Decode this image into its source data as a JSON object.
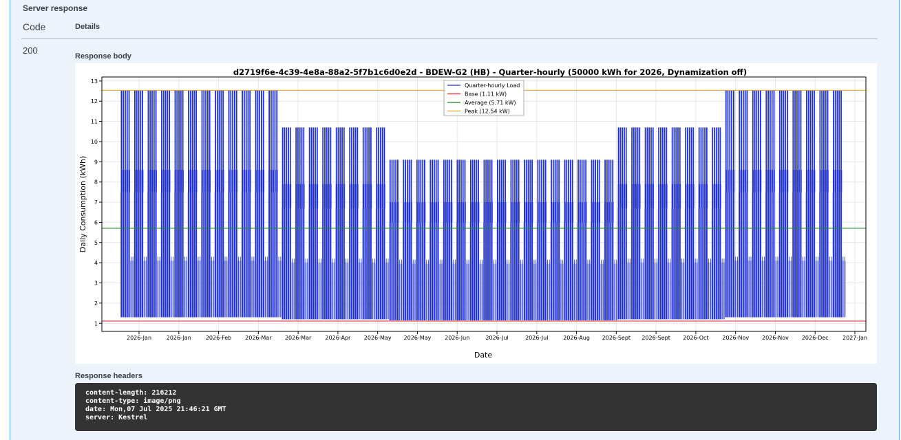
{
  "server_response": {
    "title": "Server response",
    "col_code": "Code",
    "col_details": "Details",
    "status_code": "200",
    "response_body_label": "Response body",
    "response_headers_label": "Response headers"
  },
  "headers": [
    "content-length: 216212",
    "content-type: image/png",
    "date: Mon,07 Jul 2025 21:46:21 GMT",
    "server: Kestrel"
  ],
  "chart_data": {
    "type": "line",
    "title": "d2719f6e-4c39-4e8a-88a2-5f7b1c6d0e2d - BDEW-G2 (HB) - Quarter-hourly (50000 kWh for 2026, Dynamization off)",
    "xlabel": "Date",
    "ylabel": "Daily Consumption (kWh)",
    "ylim": [
      0.6,
      13.2
    ],
    "yticks": [
      1,
      2,
      3,
      4,
      5,
      6,
      7,
      8,
      9,
      10,
      11,
      12,
      13
    ],
    "xtick_labels": [
      "2026-Jan",
      "2026-Jan",
      "2026-Feb",
      "2026-Mar",
      "2026-Mar",
      "2026-Apr",
      "2026-May",
      "2026-May",
      "2026-Jun",
      "2026-Jul",
      "2026-Jul",
      "2026-Aug",
      "2026-Sept",
      "2026-Sept",
      "2026-Oct",
      "2026-Nov",
      "2026-Nov",
      "2026-Dec",
      "2027-Jan"
    ],
    "grid": true,
    "legend_position": "top-center",
    "series": [
      {
        "name": "Quarter-hourly Load",
        "color": "#1f2fd6",
        "periods": [
          {
            "weeks": 12,
            "peak": 12.54,
            "upper": 8.6,
            "mid": 7.5,
            "low": 1.3
          },
          {
            "weeks": 8,
            "peak": 10.7,
            "upper": 7.9,
            "mid": 6.7,
            "low": 1.2
          },
          {
            "weeks": 17,
            "peak": 9.1,
            "upper": 7.0,
            "mid": 6.0,
            "low": 1.15
          },
          {
            "weeks": 8,
            "peak": 10.7,
            "upper": 7.9,
            "mid": 6.7,
            "low": 1.2
          },
          {
            "weeks": 9,
            "peak": 12.54,
            "upper": 8.6,
            "mid": 7.5,
            "low": 1.3
          }
        ]
      },
      {
        "name": "Base (1.11 kW)",
        "color": "#e0202a",
        "value": 1.11
      },
      {
        "name": "Average (5.71 kW)",
        "color": "#1a8a1a",
        "value": 5.71
      },
      {
        "name": "Peak (12.54 kW)",
        "color": "#f0a020",
        "value": 12.54
      }
    ]
  }
}
